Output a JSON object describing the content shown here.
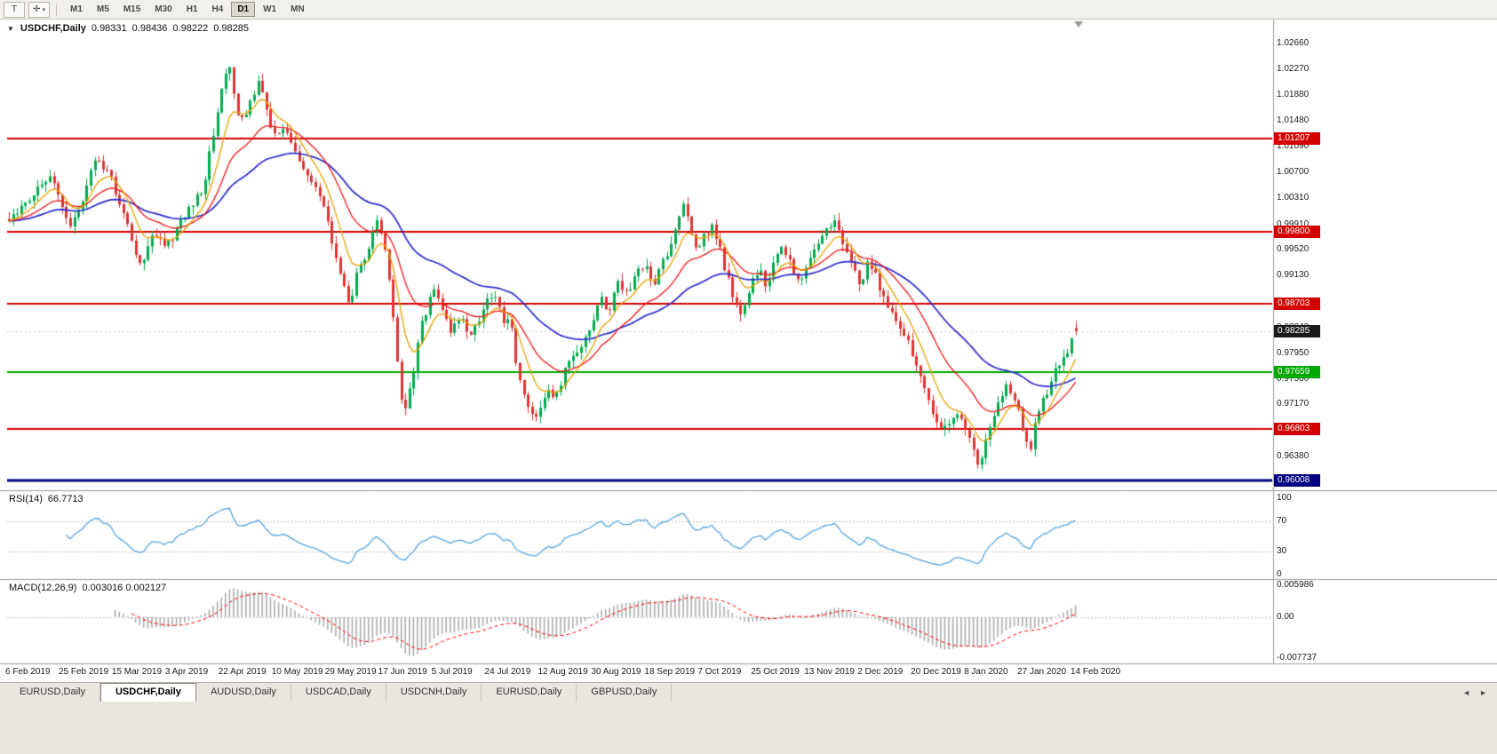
{
  "toolbar": {
    "icons": {
      "text_tool": "T",
      "cursor_tool": "✛",
      "dropdown": "▾",
      "collapse": "▼"
    },
    "timeframes": [
      "M1",
      "M5",
      "M15",
      "M30",
      "H1",
      "H4",
      "D1",
      "W1",
      "MN"
    ],
    "active_timeframe": "D1"
  },
  "chart": {
    "header": {
      "symbol": "USDCHF,Daily",
      "open": "0.98331",
      "high": "0.98436",
      "low": "0.98222",
      "close": "0.98285"
    },
    "price_axis": {
      "labels": [
        "1.02660",
        "1.02270",
        "1.01880",
        "1.01480",
        "1.01090",
        "1.00700",
        "1.00310",
        "0.99910",
        "0.99520",
        "0.99130",
        "0.98730",
        "0.98340",
        "0.97950",
        "0.97560",
        "0.97170",
        "0.96770",
        "0.96380",
        "0.95990"
      ],
      "top_price": 1.0278,
      "bottom_price": 0.9592
    },
    "levels": [
      {
        "value": 1.01207,
        "label": "1.01207",
        "color": "#d40000",
        "width": 2
      },
      {
        "value": 0.998,
        "label": "0.99800",
        "color": "#d40000",
        "width": 2
      },
      {
        "value": 0.98703,
        "label": "0.98703",
        "color": "#d40000",
        "width": 2
      },
      {
        "value": 0.97659,
        "label": "0.97659",
        "color": "#00a800",
        "width": 2
      },
      {
        "value": 0.96803,
        "label": "0.96803",
        "color": "#d40000",
        "width": 2
      },
      {
        "value": 0.96008,
        "label": "0.96008",
        "color": "#000080",
        "width": 3
      }
    ],
    "dates": [
      "6 Feb 2019",
      "25 Feb 2019",
      "15 Mar 2019",
      "3 Apr 2019",
      "22 Apr 2019",
      "10 May 2019",
      "29 May 2019",
      "17 Jun 2019",
      "5 Jul 2019",
      "24 Jul 2019",
      "12 Aug 2019",
      "30 Aug 2019",
      "18 Sep 2019",
      "7 Oct 2019",
      "25 Oct 2019",
      "13 Nov 2019",
      "2 Dec 2019",
      "20 Dec 2019",
      "8 Jan 2020",
      "27 Jan 2020",
      "14 Feb 2020"
    ],
    "colors": {
      "up": "#00ab4e",
      "down": "#e03434",
      "ma_fast": "#e8a200",
      "ma_mid": "#f01818",
      "ma_slow": "#2b2bd0",
      "rsi": "#56a5e2",
      "macd_hist": "#a8a8a8",
      "macd_signal": "#ff0000",
      "current_badge": "#1b1b1b"
    },
    "path_anchors": [
      [
        10,
        1.0
      ],
      [
        30,
        1.0025
      ],
      [
        55,
        1.0068
      ],
      [
        70,
        1.0015
      ],
      [
        78,
        0.9985
      ],
      [
        90,
        1.001
      ],
      [
        108,
        1.0098
      ],
      [
        122,
        1.0068
      ],
      [
        140,
        0.9998
      ],
      [
        158,
        0.993
      ],
      [
        172,
        0.998
      ],
      [
        186,
        0.995
      ],
      [
        200,
        0.999
      ],
      [
        214,
        1.0018
      ],
      [
        228,
        1.004
      ],
      [
        240,
        1.013
      ],
      [
        252,
        1.0215
      ],
      [
        258,
        1.0228
      ],
      [
        266,
        1.016
      ],
      [
        274,
        1.0145
      ],
      [
        284,
        1.019
      ],
      [
        292,
        1.0208
      ],
      [
        302,
        1.015
      ],
      [
        312,
        1.0122
      ],
      [
        320,
        1.0145
      ],
      [
        330,
        1.0108
      ],
      [
        344,
        1.0062
      ],
      [
        358,
        1.004
      ],
      [
        368,
        0.9995
      ],
      [
        382,
        0.9915
      ],
      [
        394,
        0.9872
      ],
      [
        404,
        0.993
      ],
      [
        414,
        0.995
      ],
      [
        424,
        0.9995
      ],
      [
        436,
        0.994
      ],
      [
        446,
        0.979
      ],
      [
        454,
        0.9702
      ],
      [
        462,
        0.974
      ],
      [
        474,
        0.984
      ],
      [
        488,
        0.9892
      ],
      [
        500,
        0.9858
      ],
      [
        508,
        0.9825
      ],
      [
        518,
        0.9852
      ],
      [
        528,
        0.982
      ],
      [
        538,
        0.9842
      ],
      [
        548,
        0.9882
      ],
      [
        558,
        0.9888
      ],
      [
        566,
        0.9845
      ],
      [
        574,
        0.9858
      ],
      [
        582,
        0.976
      ],
      [
        592,
        0.9718
      ],
      [
        600,
        0.9698
      ],
      [
        608,
        0.9712
      ],
      [
        616,
        0.9748
      ],
      [
        624,
        0.9726
      ],
      [
        634,
        0.9762
      ],
      [
        644,
        0.9796
      ],
      [
        656,
        0.9812
      ],
      [
        666,
        0.9842
      ],
      [
        676,
        0.9876
      ],
      [
        686,
        0.9862
      ],
      [
        696,
        0.9902
      ],
      [
        706,
        0.9884
      ],
      [
        716,
        0.9912
      ],
      [
        726,
        0.9936
      ],
      [
        736,
        0.9902
      ],
      [
        746,
        0.9936
      ],
      [
        756,
        0.9962
      ],
      [
        764,
        1.0002
      ],
      [
        770,
        1.002
      ],
      [
        776,
        0.9988
      ],
      [
        784,
        0.9952
      ],
      [
        792,
        0.9972
      ],
      [
        800,
        0.999
      ],
      [
        808,
        0.9962
      ],
      [
        816,
        0.9922
      ],
      [
        826,
        0.9872
      ],
      [
        836,
        0.9856
      ],
      [
        846,
        0.9902
      ],
      [
        854,
        0.9926
      ],
      [
        862,
        0.9896
      ],
      [
        872,
        0.9942
      ],
      [
        882,
        0.9956
      ],
      [
        890,
        0.993
      ],
      [
        900,
        0.9902
      ],
      [
        910,
        0.9936
      ],
      [
        920,
        0.9962
      ],
      [
        930,
        0.9986
      ],
      [
        940,
        0.9992
      ],
      [
        950,
        0.9962
      ],
      [
        958,
        0.9932
      ],
      [
        968,
        0.9902
      ],
      [
        978,
        0.9936
      ],
      [
        988,
        0.9902
      ],
      [
        998,
        0.9872
      ],
      [
        1008,
        0.9842
      ],
      [
        1018,
        0.9822
      ],
      [
        1028,
        0.9792
      ],
      [
        1038,
        0.9752
      ],
      [
        1048,
        0.9702
      ],
      [
        1058,
        0.9672
      ],
      [
        1068,
        0.9692
      ],
      [
        1078,
        0.9702
      ],
      [
        1088,
        0.9682
      ],
      [
        1096,
        0.9652
      ],
      [
        1103,
        0.9617
      ],
      [
        1112,
        0.9682
      ],
      [
        1122,
        0.9716
      ],
      [
        1132,
        0.9746
      ],
      [
        1140,
        0.973
      ],
      [
        1147,
        0.97
      ],
      [
        1154,
        0.9662
      ],
      [
        1159,
        0.9642
      ],
      [
        1166,
        0.9702
      ],
      [
        1174,
        0.9722
      ],
      [
        1182,
        0.9748
      ],
      [
        1190,
        0.9772
      ],
      [
        1198,
        0.9792
      ],
      [
        1206,
        0.9812
      ],
      [
        1213,
        0.98285
      ]
    ]
  },
  "rsi": {
    "title": "RSI(14)",
    "value": "66.7713",
    "period": 14,
    "axis": [
      "100",
      "70",
      "30",
      "0"
    ]
  },
  "macd": {
    "title": "MACD(12,26,9)",
    "values": "0.003016 0.002127",
    "axis": [
      "0.005986",
      "0.00",
      "-0.007737"
    ],
    "range": [
      0.005986,
      -0.007737
    ]
  },
  "tabs": {
    "items": [
      "EURUSD,Daily",
      "USDCHF,Daily",
      "AUDUSD,Daily",
      "USDCAD,Daily",
      "USDCNH,Daily",
      "EURUSD,Daily",
      "GBPUSD,Daily"
    ],
    "active_index": 1,
    "prev_icon": "◄",
    "next_icon": "►"
  }
}
